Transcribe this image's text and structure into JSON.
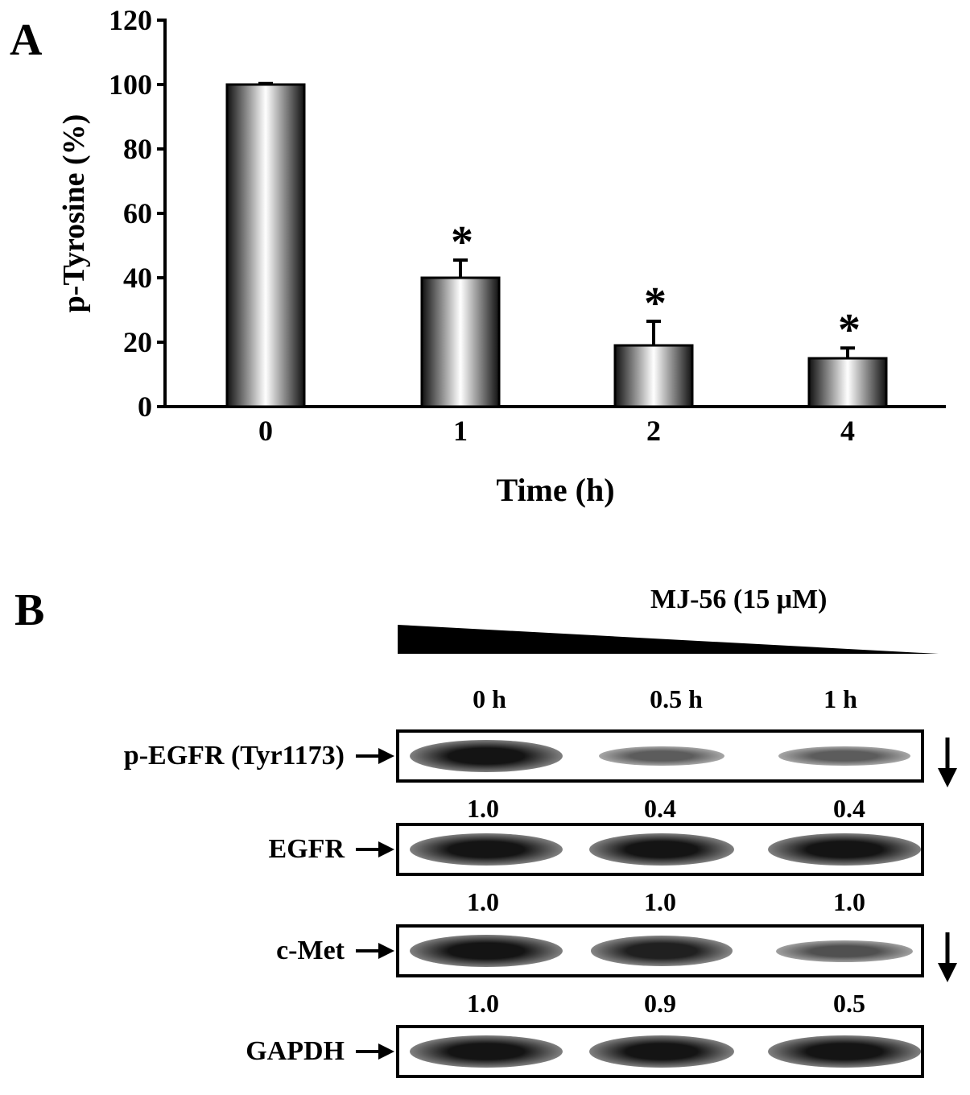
{
  "panel_a": {
    "letter": "A",
    "chart_data": {
      "type": "bar",
      "categories": [
        "0",
        "1",
        "2",
        "4"
      ],
      "values": [
        100,
        40,
        19,
        15
      ],
      "errors": [
        0.3,
        5.5,
        7.5,
        3.2
      ],
      "significance": [
        "",
        "*",
        "*",
        "*"
      ],
      "xlabel": "Time (h)",
      "ylabel": "p-Tyrosine (%)",
      "ylim": [
        0,
        120
      ],
      "yticks": [
        "0",
        "20",
        "40",
        "60",
        "80",
        "100",
        "120"
      ],
      "grid": false
    }
  },
  "panel_b": {
    "letter": "B",
    "treatment_label": "MJ-56 (15 μM)",
    "lanes": [
      "0 h",
      "0.5 h",
      "1 h"
    ],
    "blots": [
      {
        "protein": "p-EGFR (Tyr1173)",
        "quant": [
          "1.0",
          "0.4",
          "0.4"
        ],
        "intensity": [
          1.0,
          0.4,
          0.4
        ],
        "down_arrow": true
      },
      {
        "protein": "EGFR",
        "quant": [
          "1.0",
          "1.0",
          "1.0"
        ],
        "intensity": [
          1.0,
          1.0,
          1.0
        ],
        "down_arrow": false
      },
      {
        "protein": "c-Met",
        "quant": [
          "1.0",
          "0.9",
          "0.5"
        ],
        "intensity": [
          1.0,
          0.9,
          0.5
        ],
        "down_arrow": true
      },
      {
        "protein": "GAPDH",
        "quant": [],
        "intensity": [
          1.0,
          1.0,
          1.0
        ],
        "down_arrow": false
      }
    ]
  }
}
